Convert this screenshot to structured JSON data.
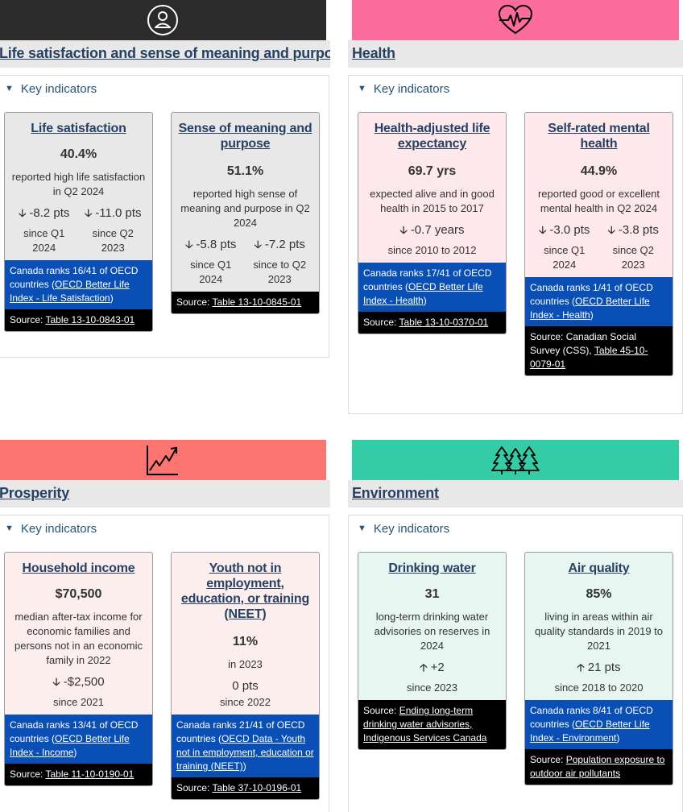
{
  "colors": {
    "life_banner": "#2b2b2b",
    "health_banner": "#fb6b9c",
    "prosperity_banner": "#fd7571",
    "environment_banner": "#33cca6",
    "link": "#284162",
    "rank_bg": "#0a4fb5",
    "source_bg": "#000000"
  },
  "common": {
    "key_indicators": "Key indicators",
    "since_q1": "since Q1",
    "year_2024": "2024",
    "year_2023": "2023"
  },
  "life": {
    "icon": "person-circle-icon",
    "title": "Life satisfaction and sense of meaning and purpose",
    "card1": {
      "title": "Life satisfaction",
      "value": "40.4%",
      "desc": "reported high life satisfaction in Q2 2024",
      "chg1": "-8.2 pts",
      "chg1_since_a": "since Q1",
      "chg1_since_b": "2024",
      "chg2": "-11.0 pts",
      "chg2_since_a": "since Q2",
      "chg2_since_b": "2023",
      "rank_prefix": "Canada ranks 16/41 of OECD countries (",
      "rank_link": "OECD Better Life Index - Life Satisfaction",
      "rank_suffix": ")",
      "source_prefix": "Source: ",
      "source_link": "Table 13-10-0843-01"
    },
    "card2": {
      "title": "Sense of meaning and purpose",
      "value": "51.1%",
      "desc": "reported high sense of meaning and purpose in Q2 2024",
      "chg1": "-5.8 pts",
      "chg1_since_a": "since Q1",
      "chg1_since_b": "2024",
      "chg2": "-7.2 pts",
      "chg2_since_a": "since to Q2",
      "chg2_since_b": "2023",
      "source_prefix": "Source: ",
      "source_link": "Table 13-10-0845-01"
    }
  },
  "health": {
    "icon": "heartbeat-icon",
    "title": "Health",
    "card1": {
      "title": "Health-adjusted life expectancy",
      "value": "69.7 yrs",
      "desc": "expected alive and in good health in 2015 to 2017",
      "chg1": "-0.7 years",
      "chg1_since": "since 2010 to 2012",
      "rank_prefix": "Canada ranks 17/41 of OECD countries (",
      "rank_link": "OECD Better Life Index - Health",
      "rank_suffix": ")",
      "source_prefix": "Source: ",
      "source_link": "Table 13-10-0370-01"
    },
    "card2": {
      "title": "Self-rated mental health",
      "value": "44.9%",
      "desc": "reported good or excellent mental health in Q2 2024",
      "chg1": "-3.0 pts",
      "chg1_since_a": "since Q1",
      "chg1_since_b": "2024",
      "chg2": "-3.8 pts",
      "chg2_since_a": "since Q2",
      "chg2_since_b": "2023",
      "rank_prefix": "Canada ranks 1/41 of OECD countries (",
      "rank_link": "OECD Better Life Index - Health",
      "rank_suffix": ")",
      "source_prefix": "Source: Canadian Social Survey (CSS), ",
      "source_link": "Table 45-10-0079-01"
    }
  },
  "prosperity": {
    "icon": "chart-trend-icon",
    "title": "Prosperity",
    "card1": {
      "title": "Household income",
      "value": "$70,500",
      "desc": "median after-tax income for economic families and persons not in an economic family in 2022",
      "chg1": "-$2,500",
      "chg1_since": "since 2021",
      "rank_prefix": "Canada ranks 13/41 of OECD countries (",
      "rank_link": "OECD Better Life Index - Income",
      "rank_suffix": ")",
      "source_prefix": "Source: ",
      "source_link": "Table 11-10-0190-01"
    },
    "card2": {
      "title": "Youth not in employment, education, or training (NEET)",
      "value": "11%",
      "desc": "in 2023",
      "chg1": "0 pts",
      "chg1_since": "since 2022",
      "rank_prefix": "Canada ranks 21/41 of OECD countries (",
      "rank_link": "OECD Data - Youth not in employment, education or training (NEET)",
      "rank_suffix": ")",
      "source_prefix": "Source: ",
      "source_link": "Table 37-10-0196-01"
    }
  },
  "environment": {
    "icon": "pine-trees-icon",
    "title": "Environment",
    "card1": {
      "title": "Drinking water",
      "value": "31",
      "desc": "long-term drinking water advisories on reserves in 2024",
      "chg1": "+2",
      "chg1_since": "since 2023",
      "source_prefix": "Source: ",
      "source_link": "Ending long-term drinking water advisories, Indigenous Services Canada"
    },
    "card2": {
      "title": "Air quality",
      "value": "85%",
      "desc": "living in areas within air quality standards in 2019 to 2021",
      "chg1": "21 pts",
      "chg1_since": "since 2018 to 2020",
      "rank_prefix": "Canada ranks 8/41 of OECD countries (",
      "rank_link": "OECD Better Life Index - Environment",
      "rank_suffix": ")",
      "source_prefix": "Source: ",
      "source_link": "Population exposure to outdoor air pollutants"
    }
  }
}
